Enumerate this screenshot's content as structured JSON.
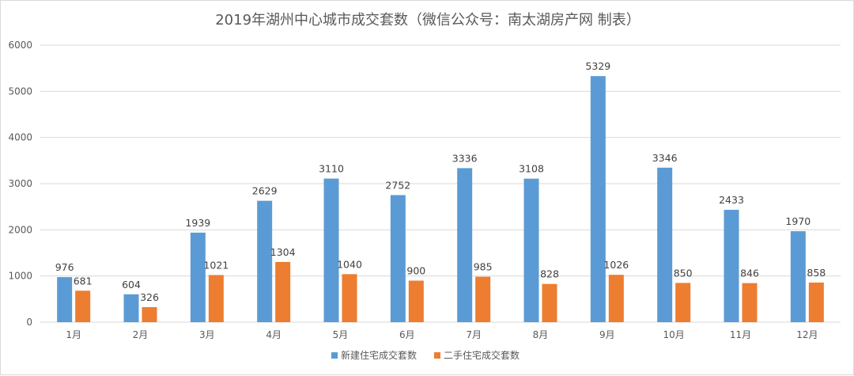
{
  "chart_data": {
    "type": "bar",
    "title": "2019年湖州中心城市成交套数（微信公众号：南太湖房产网 制表）",
    "categories": [
      "1月",
      "2月",
      "3月",
      "4月",
      "5月",
      "6月",
      "7月",
      "8月",
      "9月",
      "10月",
      "11月",
      "12月"
    ],
    "series": [
      {
        "name": "新建住宅成交套数",
        "color": "#5b9bd5",
        "values": [
          976,
          604,
          1939,
          2629,
          3110,
          2752,
          3336,
          3108,
          5329,
          3346,
          2433,
          1970
        ]
      },
      {
        "name": "二手住宅成交套数",
        "color": "#ed7d31",
        "values": [
          681,
          326,
          1021,
          1304,
          1040,
          900,
          985,
          828,
          1026,
          850,
          846,
          858
        ]
      }
    ],
    "ylim": [
      0,
      6000
    ],
    "yticks": [
      0,
      1000,
      2000,
      3000,
      4000,
      5000,
      6000
    ],
    "grid": true,
    "legend_position": "bottom"
  }
}
